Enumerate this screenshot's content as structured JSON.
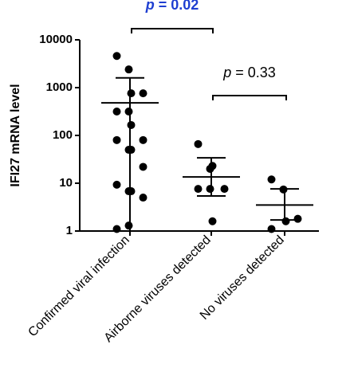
{
  "chart_data": {
    "type": "scatter",
    "y_label": "IFI27 mRNA level",
    "log_y": true,
    "ylim": [
      1,
      10000
    ],
    "yticks": [
      1,
      10,
      100,
      1000,
      10000
    ],
    "categories": [
      "Confirmed viral infection",
      "Airborne viruses detected",
      "No viruses detected"
    ],
    "color": "#000000",
    "points": [
      [
        4600,
        2400,
        760,
        760,
        316,
        316,
        165,
        80,
        80,
        50,
        50,
        22,
        9.3,
        6.8,
        6.8,
        5,
        1.1,
        1.3
      ],
      [
        66,
        20,
        23,
        7.6,
        7.6,
        7.6,
        1.6
      ],
      [
        12,
        7.4,
        1.6,
        1.8,
        1.1
      ]
    ],
    "means": [
      480,
      13.5,
      3.5
    ],
    "error_upper": [
      1600,
      34,
      7.6
    ],
    "error_lower": [
      null,
      5.4,
      1.7
    ],
    "annotations": [
      {
        "prefix": "p",
        "text": "= 0.02",
        "color": "#1f3fd1",
        "bold": true,
        "from": 0,
        "to": 1
      },
      {
        "prefix": "p",
        "text": "= 0.33",
        "color": "#000000",
        "bold": false,
        "from": 1,
        "to": 2
      }
    ]
  }
}
